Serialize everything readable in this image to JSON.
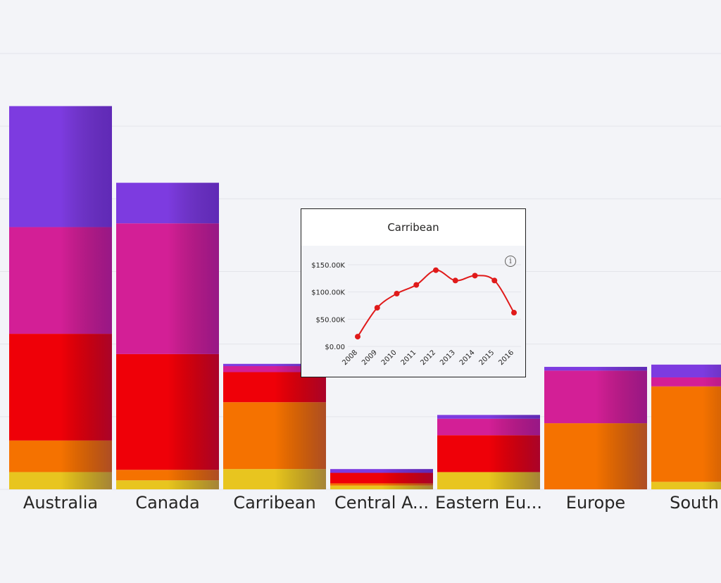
{
  "chart_data": [
    {
      "type": "bar",
      "stacked": true,
      "categories": [
        "",
        "Australia",
        "Canada",
        "Carribean",
        "Central A...",
        "Eastern Eu...",
        "Europe",
        "South A"
      ],
      "ylim": [
        0,
        5800
      ],
      "grid": true,
      "series": [
        {
          "color": "#e8c51f",
          "values": [
            0,
            230,
            120,
            270,
            50,
            230,
            0,
            100
          ]
        },
        {
          "color": "#f57200",
          "values": [
            0,
            420,
            140,
            890,
            30,
            0,
            880,
            1270
          ]
        },
        {
          "color": "#ef0008",
          "values": [
            0,
            1420,
            1540,
            400,
            140,
            490,
            0,
            0
          ]
        },
        {
          "color": "#d31f96",
          "values": [
            0,
            1420,
            1740,
            80,
            0,
            220,
            700,
            120
          ]
        },
        {
          "color": "#7d3be0",
          "values": [
            0,
            1610,
            540,
            30,
            50,
            50,
            50,
            170
          ]
        }
      ]
    },
    {
      "type": "line",
      "title": "Carribean",
      "x": [
        "2008",
        "2009",
        "2010",
        "2011",
        "2012",
        "2013",
        "2014",
        "2015",
        "2016"
      ],
      "values": [
        18000,
        71000,
        97000,
        113000,
        140000,
        121000,
        130000,
        121000,
        62000
      ],
      "ylim": [
        0,
        150000
      ],
      "yticks": [
        "$0.00",
        "$50.00K",
        "$100.00K",
        "$150.00K"
      ],
      "color": "#e01a1a"
    }
  ],
  "tooltip": {
    "title": "Carribean",
    "info_icon": "info-icon"
  }
}
